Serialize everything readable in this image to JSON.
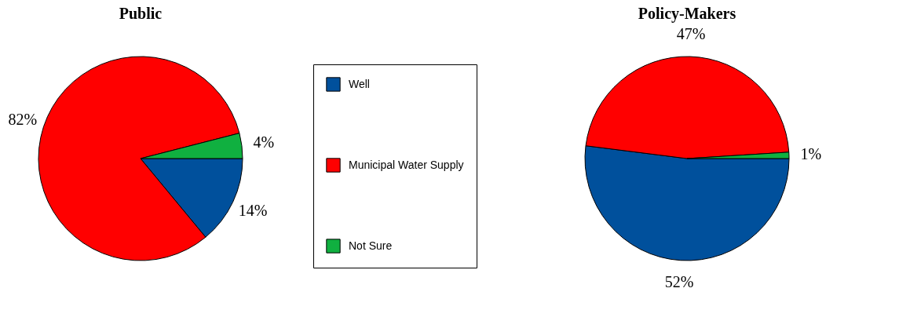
{
  "chart_data": [
    {
      "type": "pie",
      "title": "Public",
      "categories": [
        "Well",
        "Municipal Water Supply",
        "Not Sure"
      ],
      "values": [
        14,
        82,
        4
      ],
      "colors": [
        "#00509c",
        "#ff0000",
        "#10b040"
      ],
      "value_labels": [
        "14%",
        "82%",
        "4%"
      ],
      "legend": "right"
    },
    {
      "type": "pie",
      "title": "Policy-Makers",
      "categories": [
        null,
        null,
        null
      ],
      "values": [
        52,
        47,
        1
      ],
      "colors": [
        "#00509c",
        "#ff0000",
        "#10b040"
      ],
      "value_labels": [
        "52%",
        "47%",
        "1%"
      ]
    }
  ]
}
